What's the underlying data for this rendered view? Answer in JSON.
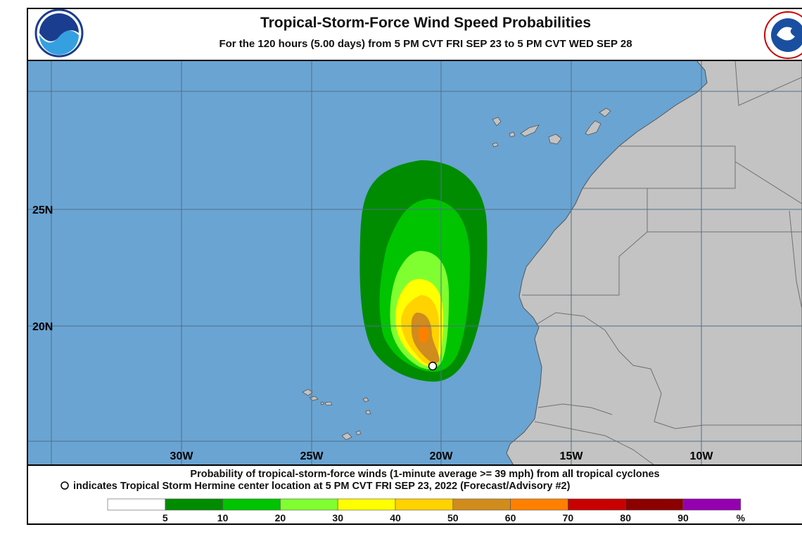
{
  "header": {
    "title": "Tropical-Storm-Force Wind Speed Probabilities",
    "subtitle": "For the 120 hours (5.00 days) from 5 PM CVT FRI SEP 23 to 5 PM CVT WED SEP 28"
  },
  "map": {
    "lon_labels": [
      "30W",
      "25W",
      "20W",
      "15W",
      "10W"
    ],
    "lat_labels": [
      "25N",
      "20N"
    ]
  },
  "footer": {
    "line1": "Probability of tropical-storm-force winds (1-minute average >= 39 mph) from all tropical cyclones",
    "line2": "indicates Tropical Storm Hermine center location at 5 PM CVT FRI SEP 23, 2022 (Forecast/Advisory #2)"
  },
  "legend": {
    "colors": [
      "#ffffff",
      "#008c00",
      "#00c400",
      "#80ff30",
      "#ffff00",
      "#ffd200",
      "#d08c1c",
      "#ff8000",
      "#c80000",
      "#8c0000",
      "#9400b0"
    ],
    "labels": [
      "5",
      "10",
      "20",
      "30",
      "40",
      "50",
      "60",
      "70",
      "80",
      "90",
      "%"
    ]
  }
}
